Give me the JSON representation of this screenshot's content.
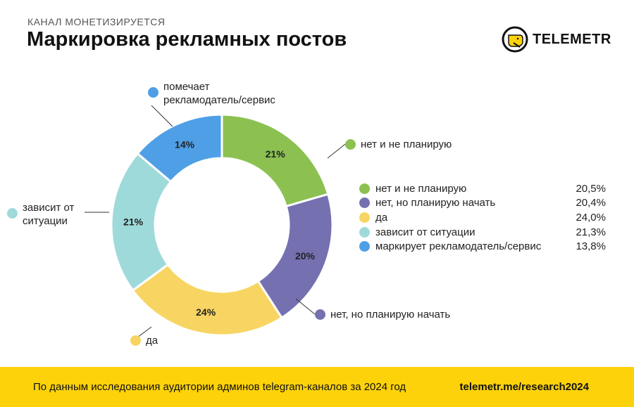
{
  "header": {
    "kicker": "КАНАЛ МОНЕТИЗИРУЕТСЯ",
    "title": "Маркировка рекламных постов",
    "logo": "TELEMETR"
  },
  "chart_data": {
    "type": "pie",
    "title": "Маркировка рекламных постов",
    "donut": true,
    "start": "top",
    "direction": "clockwise",
    "categories": [
      "нет и не планирую",
      "нет, но планирую начать",
      "да",
      "зависит от ситуации",
      "маркирует рекламодатель/сервис"
    ],
    "values": [
      20.5,
      20.4,
      24.0,
      21.3,
      13.8
    ],
    "value_labels": [
      "20,5%",
      "20,4%",
      "24,0%",
      "21,3%",
      "13,8%"
    ],
    "slice_labels": [
      "21%",
      "20%",
      "24%",
      "21%",
      "14%"
    ],
    "colors": [
      "#8cc152",
      "#7571b0",
      "#f8d562",
      "#9fdadb",
      "#4e9fe6"
    ],
    "callouts": [
      "нет и не планирую",
      "нет, но планирую начать",
      "да",
      "зависит от\nситуации",
      "помечает\nрекламодатель/сервис"
    ],
    "legend_position": "right"
  },
  "footer": {
    "source": "По данным исследования аудитории админов telegram-каналов за 2024 год",
    "url": "telemetr.me/research2024"
  }
}
